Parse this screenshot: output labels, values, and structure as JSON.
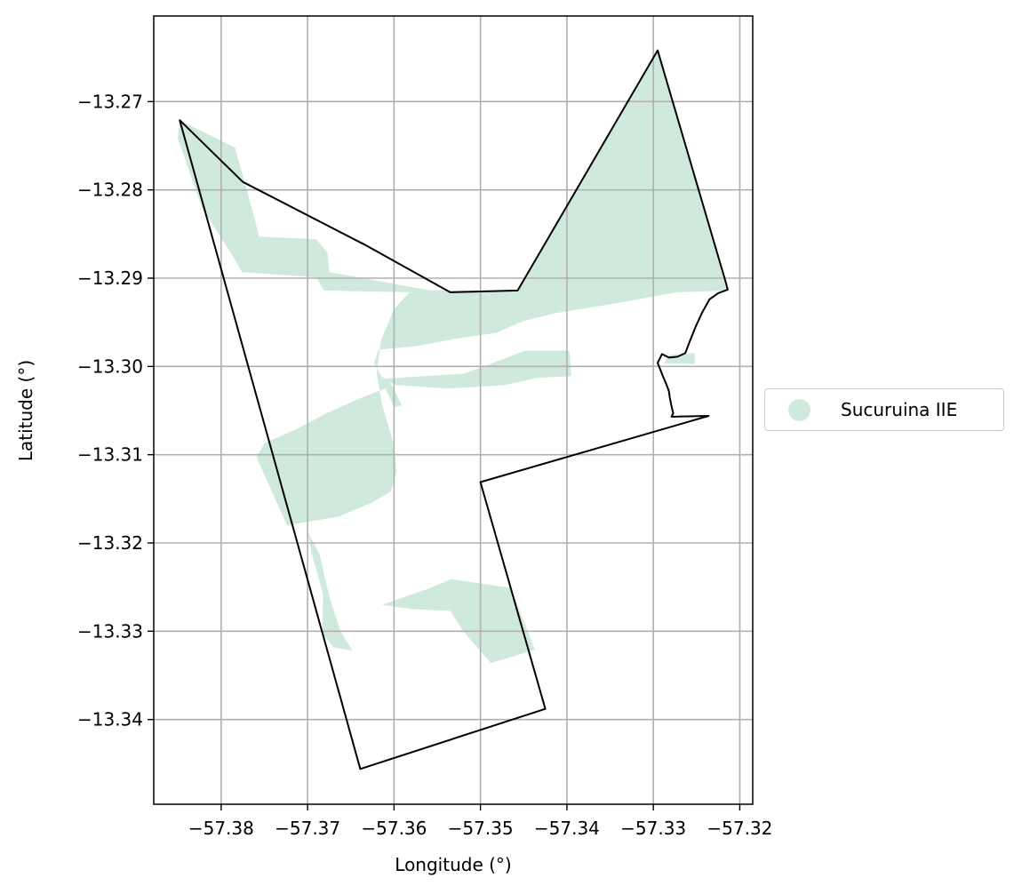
{
  "chart_data": {
    "type": "map",
    "xlabel": "Longitude (°)",
    "ylabel": "Latitude (°)",
    "xlim": [
      -57.3878,
      -57.3185
    ],
    "ylim": [
      -13.3496,
      -13.2603
    ],
    "grid": true,
    "legend_position": "center-right-outside",
    "x_ticks": [
      -57.38,
      -57.37,
      -57.36,
      -57.35,
      -57.34,
      -57.33,
      -57.32
    ],
    "x_tick_labels": [
      "−57.38",
      "−57.37",
      "−57.36",
      "−57.35",
      "−57.34",
      "−57.33",
      "−57.32"
    ],
    "y_ticks": [
      -13.27,
      -13.28,
      -13.29,
      -13.3,
      -13.31,
      -13.32,
      -13.33,
      -13.34
    ],
    "y_tick_labels": [
      "−13.27",
      "−13.28",
      "−13.29",
      "−13.30",
      "−13.31",
      "−13.32",
      "−13.33",
      "−13.34"
    ],
    "legend": [
      {
        "label": "Sucuruina IIE",
        "color": "#cfeadd"
      }
    ],
    "boundary": [
      [
        -57.3848,
        -13.2721
      ],
      [
        -57.3775,
        -13.2791
      ],
      [
        -57.3634,
        -13.2862
      ],
      [
        -57.3535,
        -13.2916
      ],
      [
        -57.3457,
        -13.2914
      ],
      [
        -57.3295,
        -13.2642
      ],
      [
        -57.3216,
        -13.2905
      ],
      [
        -57.3214,
        -13.2913
      ],
      [
        -57.3225,
        -13.2917
      ],
      [
        -57.3235,
        -13.2924
      ],
      [
        -57.3243,
        -13.2938
      ],
      [
        -57.3251,
        -13.2955
      ],
      [
        -57.3258,
        -13.2972
      ],
      [
        -57.3263,
        -13.2985
      ],
      [
        -57.3272,
        -13.2989
      ],
      [
        -57.3282,
        -13.299
      ],
      [
        -57.329,
        -13.2986
      ],
      [
        -57.3295,
        -13.2996
      ],
      [
        -57.3289,
        -13.3011
      ],
      [
        -57.3285,
        -13.302
      ],
      [
        -57.3282,
        -13.3028
      ],
      [
        -57.3281,
        -13.3035
      ],
      [
        -57.3279,
        -13.3045
      ],
      [
        -57.3277,
        -13.3053
      ],
      [
        -57.3279,
        -13.3057
      ],
      [
        -57.3236,
        -13.3056
      ],
      [
        -57.35,
        -13.3131
      ],
      [
        -57.3425,
        -13.3388
      ],
      [
        -57.3639,
        -13.3456
      ]
    ],
    "regions": [
      {
        "name": "Sucuruina IIE",
        "polygon": [
          [
            -57.3848,
            -13.2721
          ],
          [
            -57.3784,
            -13.2752
          ],
          [
            -57.377,
            -13.2801
          ],
          [
            -57.3756,
            -13.2853
          ],
          [
            -57.369,
            -13.2856
          ],
          [
            -57.3677,
            -13.2871
          ],
          [
            -57.3675,
            -13.2893
          ],
          [
            -57.3558,
            -13.2914
          ],
          [
            -57.3457,
            -13.2914
          ],
          [
            -57.3295,
            -13.2642
          ],
          [
            -57.3216,
            -13.2905
          ],
          [
            -57.3215,
            -13.2914
          ],
          [
            -57.3273,
            -13.2916
          ],
          [
            -57.334,
            -13.2928
          ],
          [
            -57.3415,
            -13.294
          ],
          [
            -57.3452,
            -13.2949
          ],
          [
            -57.3482,
            -13.2962
          ],
          [
            -57.3525,
            -13.2968
          ],
          [
            -57.3574,
            -13.2977
          ],
          [
            -57.3618,
            -13.2981
          ],
          [
            -57.3623,
            -13.2996
          ],
          [
            -57.3608,
            -13.3024
          ],
          [
            -57.3639,
            -13.3036
          ],
          [
            -57.3678,
            -13.3053
          ],
          [
            -57.3713,
            -13.3071
          ],
          [
            -57.375,
            -13.3087
          ],
          [
            -57.3759,
            -13.3103
          ],
          [
            -57.3724,
            -13.318
          ],
          [
            -57.3664,
            -13.317
          ],
          [
            -57.3627,
            -13.3155
          ],
          [
            -57.3604,
            -13.3142
          ],
          [
            -57.3597,
            -13.312
          ],
          [
            -57.36,
            -13.3089
          ],
          [
            -57.3614,
            -13.3043
          ],
          [
            -57.362,
            -13.3008
          ],
          [
            -57.3615,
            -13.297
          ],
          [
            -57.36,
            -13.2935
          ],
          [
            -57.3582,
            -13.2916
          ],
          [
            -57.3681,
            -13.2914
          ],
          [
            -57.369,
            -13.2899
          ],
          [
            -57.3776,
            -13.2893
          ],
          [
            -57.3786,
            -13.2876
          ],
          [
            -57.3822,
            -13.2821
          ],
          [
            -57.385,
            -13.2742
          ]
        ]
      },
      {
        "name": "Sucuruina IIE",
        "polygon": [
          [
            -57.3614,
            -13.3014
          ],
          [
            -57.3518,
            -13.3008
          ],
          [
            -57.3448,
            -13.2982
          ],
          [
            -57.3397,
            -13.2982
          ],
          [
            -57.3395,
            -13.3011
          ],
          [
            -57.3435,
            -13.3013
          ],
          [
            -57.3471,
            -13.3021
          ],
          [
            -57.3537,
            -13.3025
          ],
          [
            -57.3569,
            -13.3023
          ],
          [
            -57.3598,
            -13.3021
          ]
        ]
      },
      {
        "name": "Sucuruina IIE",
        "polygon": [
          [
            -57.3614,
            -13.3011
          ],
          [
            -57.3603,
            -13.302
          ],
          [
            -57.3591,
            -13.3044
          ],
          [
            -57.36,
            -13.3046
          ],
          [
            -57.361,
            -13.3025
          ]
        ]
      },
      {
        "name": "Sucuruina IIE",
        "polygon": [
          [
            -57.3282,
            -13.2987
          ],
          [
            -57.3252,
            -13.2985
          ],
          [
            -57.3252,
            -13.2997
          ],
          [
            -57.3288,
            -13.2997
          ]
        ]
      },
      {
        "name": "Sucuruina IIE",
        "polygon": [
          [
            -57.37,
            -13.3187
          ],
          [
            -57.3695,
            -13.3213
          ],
          [
            -57.3682,
            -13.3258
          ],
          [
            -57.3683,
            -13.3303
          ],
          [
            -57.367,
            -13.3318
          ],
          [
            -57.3648,
            -13.3322
          ],
          [
            -57.3662,
            -13.33
          ],
          [
            -57.3675,
            -13.326
          ],
          [
            -57.3686,
            -13.3213
          ]
        ]
      },
      {
        "name": "Sucuruina IIE",
        "polygon": [
          [
            -57.3614,
            -13.327
          ],
          [
            -57.3558,
            -13.3251
          ],
          [
            -57.3534,
            -13.3241
          ],
          [
            -57.3465,
            -13.3251
          ],
          [
            -57.3437,
            -13.3321
          ],
          [
            -57.3488,
            -13.3336
          ],
          [
            -57.3504,
            -13.3318
          ],
          [
            -57.352,
            -13.33
          ],
          [
            -57.3535,
            -13.3277
          ],
          [
            -57.3579,
            -13.3275
          ]
        ]
      }
    ]
  }
}
